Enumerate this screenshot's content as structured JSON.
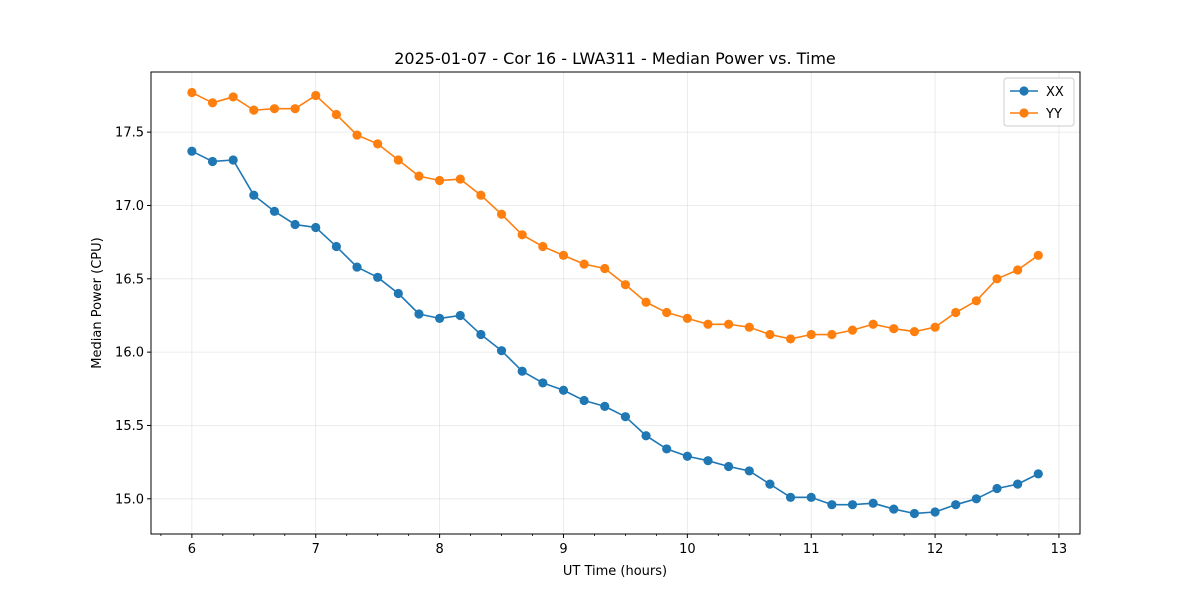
{
  "chart_data": {
    "type": "line",
    "title": "2025-01-07 - Cor 16 - LWA311 - Median Power vs. Time",
    "xlabel": "UT Time (hours)",
    "ylabel": "Median Power (CPU)",
    "xlim": [
      5.67,
      13.17
    ],
    "ylim": [
      14.76,
      17.91
    ],
    "xticks": [
      6,
      7,
      8,
      9,
      10,
      11,
      12,
      13
    ],
    "xtick_labels": [
      "6",
      "7",
      "8",
      "9",
      "10",
      "11",
      "12",
      "13"
    ],
    "yticks": [
      15.0,
      15.5,
      16.0,
      16.5,
      17.0,
      17.5
    ],
    "ytick_labels": [
      "15.0",
      "15.5",
      "16.0",
      "16.5",
      "17.0",
      "17.5"
    ],
    "grid": true,
    "legend_position": "top-right",
    "x": [
      6.0,
      6.1667,
      6.3333,
      6.5,
      6.6667,
      6.8333,
      7.0,
      7.1667,
      7.3333,
      7.5,
      7.6667,
      7.8333,
      8.0,
      8.1667,
      8.3333,
      8.5,
      8.6667,
      8.8333,
      9.0,
      9.1667,
      9.3333,
      9.5,
      9.6667,
      9.8333,
      10.0,
      10.1667,
      10.3333,
      10.5,
      10.6667,
      10.8333,
      11.0,
      11.1667,
      11.3333,
      11.5,
      11.6667,
      11.8333,
      12.0,
      12.1667,
      12.3333,
      12.5,
      12.6667,
      12.8333
    ],
    "series": [
      {
        "name": "XX",
        "color": "#1f77b4",
        "values": [
          17.37,
          17.3,
          17.31,
          17.07,
          16.96,
          16.87,
          16.85,
          16.72,
          16.58,
          16.51,
          16.4,
          16.26,
          16.23,
          16.25,
          16.12,
          16.01,
          15.87,
          15.79,
          15.74,
          15.67,
          15.63,
          15.56,
          15.43,
          15.34,
          15.29,
          15.26,
          15.22,
          15.19,
          15.1,
          15.01,
          15.01,
          14.96,
          14.96,
          14.97,
          14.93,
          14.9,
          14.91,
          14.96,
          15.0,
          15.07,
          15.1,
          15.17
        ]
      },
      {
        "name": "YY",
        "color": "#ff7f0e",
        "values": [
          17.77,
          17.7,
          17.74,
          17.65,
          17.66,
          17.66,
          17.75,
          17.62,
          17.48,
          17.42,
          17.31,
          17.2,
          17.17,
          17.18,
          17.07,
          16.94,
          16.8,
          16.72,
          16.66,
          16.6,
          16.57,
          16.46,
          16.34,
          16.27,
          16.23,
          16.19,
          16.19,
          16.17,
          16.12,
          16.09,
          16.12,
          16.12,
          16.15,
          16.19,
          16.16,
          16.14,
          16.17,
          16.27,
          16.35,
          16.5,
          16.56,
          16.66
        ]
      }
    ]
  }
}
